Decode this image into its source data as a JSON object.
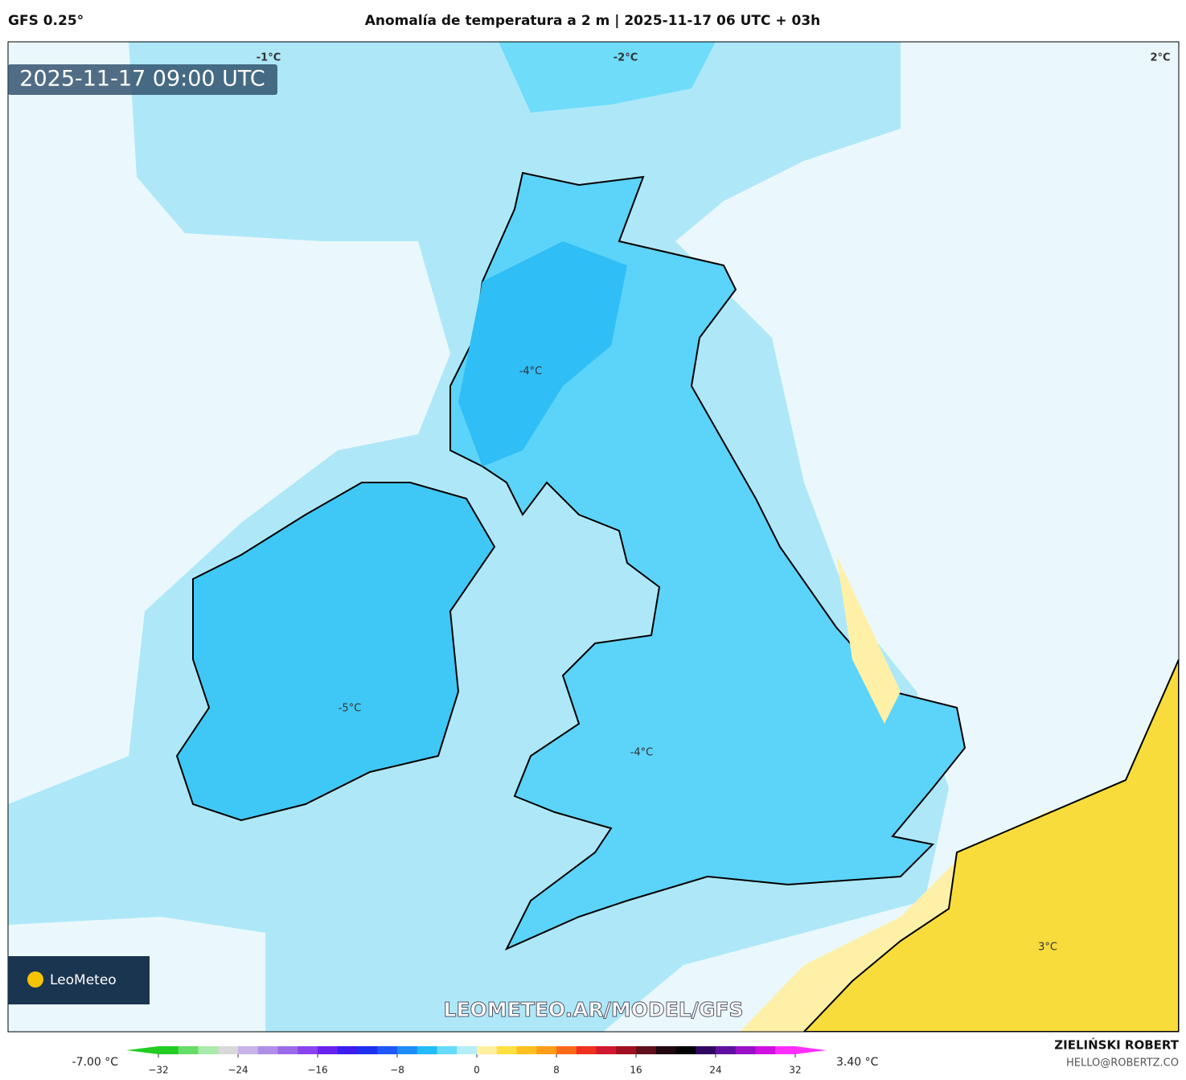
{
  "header": {
    "model": "GFS 0.25°",
    "title": "Anomalía de temperatura a 2 m | 2025-11-17 06 UTC + 03h"
  },
  "map": {
    "valid_time": "2025-11-17 09:00 UTC",
    "contour_labels": [
      "-1°C",
      "-2°C",
      "2°C",
      "-4°C",
      "-5°C",
      "-4°C",
      "3°C"
    ],
    "logo": "LeoMeteo",
    "watermark": "LEOMETEO.AR/MODEL/GFS"
  },
  "colorbar": {
    "min_label": "-7.00 °C",
    "max_label": "3.40 °C",
    "range": [
      -32,
      32
    ],
    "ticks": [
      {
        "value": -32,
        "label": "−32"
      },
      {
        "value": -24,
        "label": "−24"
      },
      {
        "value": -16,
        "label": "−16"
      },
      {
        "value": -8,
        "label": "−8"
      },
      0,
      8,
      16,
      24,
      32
    ],
    "colors": [
      "#22cc22",
      "#66dd66",
      "#aaeaaa",
      "#d8d8d8",
      "#c8b4e8",
      "#b08ee8",
      "#9a6ae8",
      "#8a44ee",
      "#6a22ee",
      "#3c1cee",
      "#1e30f0",
      "#1e58fa",
      "#1e8cfa",
      "#22bcfa",
      "#66dcfa",
      "#b4eefa",
      "#fff0a0",
      "#ffe040",
      "#ffc020",
      "#ff9c18",
      "#ff6a18",
      "#f03020",
      "#d01830",
      "#a01020",
      "#601018",
      "#200810",
      "#000000",
      "#300860",
      "#6010a0",
      "#9a10c8",
      "#d010e0",
      "#ff30ff"
    ]
  },
  "footer": {
    "author": "ZIELIŃSKI ROBERT",
    "email": "HELLO@ROBERTZ.CO"
  }
}
